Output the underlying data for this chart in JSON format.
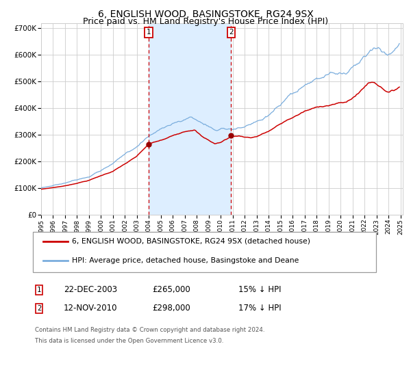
{
  "title": "6, ENGLISH WOOD, BASINGSTOKE, RG24 9SX",
  "subtitle": "Price paid vs. HM Land Registry's House Price Index (HPI)",
  "legend_line1": "6, ENGLISH WOOD, BASINGSTOKE, RG24 9SX (detached house)",
  "legend_line2": "HPI: Average price, detached house, Basingstoke and Deane",
  "footnote1": "Contains HM Land Registry data © Crown copyright and database right 2024.",
  "footnote2": "This data is licensed under the Open Government Licence v3.0.",
  "sale1_date": "22-DEC-2003",
  "sale1_price": 265000,
  "sale1_label": "15% ↓ HPI",
  "sale2_date": "12-NOV-2010",
  "sale2_price": 298000,
  "sale2_label": "17% ↓ HPI",
  "sale1_x": 2003.97,
  "sale2_x": 2010.87,
  "hpi_color": "#7aaddd",
  "price_color": "#cc0000",
  "dot_color": "#990000",
  "shade_color": "#ddeeff",
  "vline_color": "#cc0000",
  "grid_color": "#cccccc",
  "background_color": "#ffffff",
  "ytick_vals": [
    0,
    100000,
    200000,
    300000,
    400000,
    500000,
    600000,
    700000
  ],
  "ytick_labels": [
    "£0",
    "£100K",
    "£200K",
    "£300K",
    "£400K",
    "£500K",
    "£600K",
    "£700K"
  ],
  "title_fontsize": 10,
  "subtitle_fontsize": 9
}
